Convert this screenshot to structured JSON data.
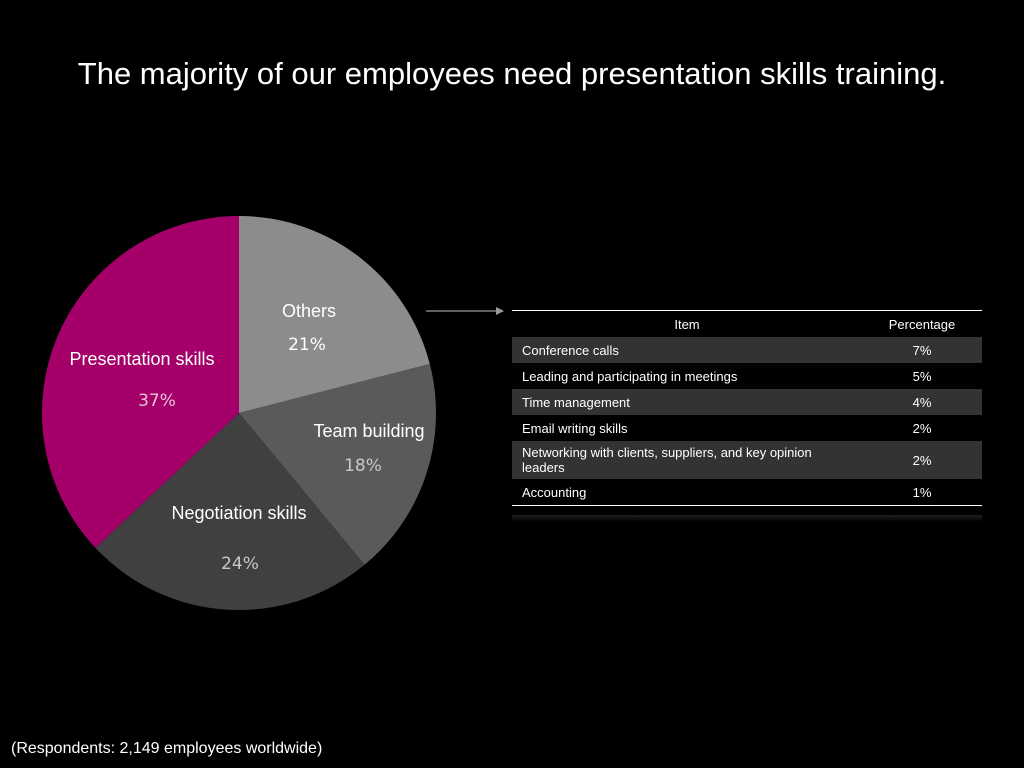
{
  "title": "The majority of our employees need presentation skills training.",
  "footnote": "(Respondents: 2,149 employees worldwide)",
  "chart_data": {
    "type": "pie",
    "slices": [
      {
        "label": "Others",
        "value": 21,
        "value_label": "21%",
        "color": "#8c8c8c",
        "value_color": "#ffffff"
      },
      {
        "label": "Team building",
        "value": 18,
        "value_label": "18%",
        "color": "#5a5a5a",
        "value_color": "#c8c8c8"
      },
      {
        "label": "Negotiation skills",
        "value": 24,
        "value_label": "24%",
        "color": "#404040",
        "value_color": "#c8c8c8"
      },
      {
        "label": "Presentation skills",
        "value": 37,
        "value_label": "37%",
        "color": "#a5006a",
        "value_color": "#e6c3d8"
      }
    ],
    "start_angle_deg": 0,
    "direction": "clockwise",
    "legend": "none"
  },
  "table": {
    "headers": {
      "item": "Item",
      "percentage": "Percentage"
    },
    "rows": [
      {
        "item": "Conference calls",
        "percentage": "7%"
      },
      {
        "item": "Leading and participating in meetings",
        "percentage": "5%"
      },
      {
        "item": "Time management",
        "percentage": "4%"
      },
      {
        "item": "Email writing skills",
        "percentage": "2%"
      },
      {
        "item": "Networking with clients, suppliers, and key opinion leaders",
        "percentage": "2%"
      },
      {
        "item": "Accounting",
        "percentage": "1%"
      }
    ]
  },
  "colors": {
    "background": "#000000",
    "accent": "#a5006a",
    "table_stripe": "#333333",
    "arrow": "#808080"
  }
}
